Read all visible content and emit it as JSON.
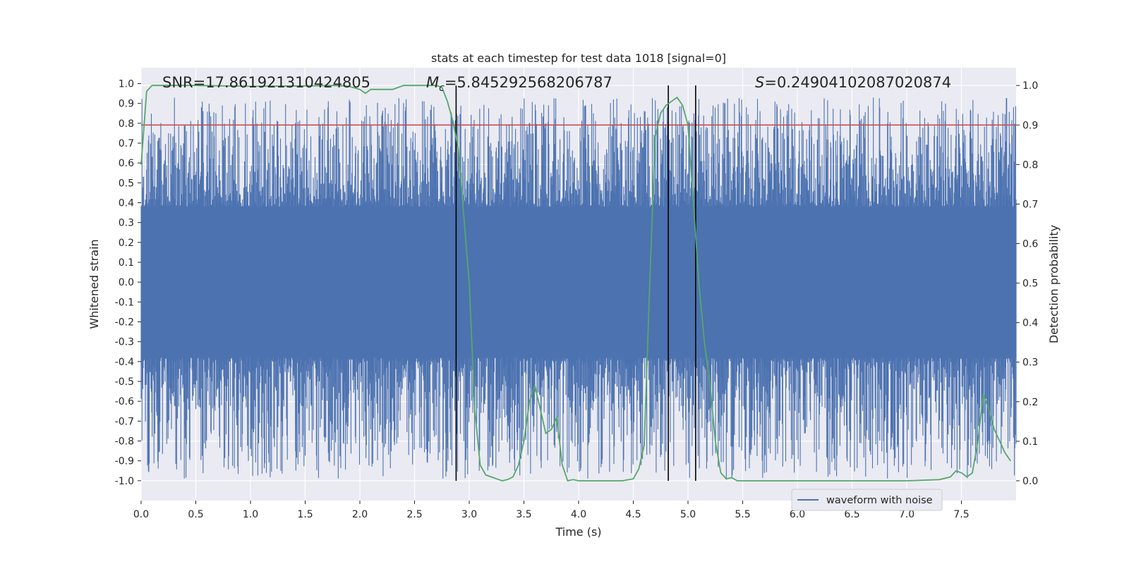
{
  "chart_data": {
    "type": "line",
    "title": "stats at each timestep for test data 1018 [signal=0]",
    "xlabel": "Time (s)",
    "ylabel_left": "Whitened strain",
    "ylabel_right": "Detection probability",
    "xlim": [
      0.0,
      8.0
    ],
    "ylim_left": [
      -1.1,
      1.08
    ],
    "ylim_right": [
      -0.05,
      1.045
    ],
    "grid": true,
    "x_ticks": [
      "0.0",
      "0.5",
      "1.0",
      "1.5",
      "2.0",
      "2.5",
      "3.0",
      "3.5",
      "4.0",
      "4.5",
      "5.0",
      "5.5",
      "6.0",
      "6.5",
      "7.0",
      "7.5"
    ],
    "x_tick_values": [
      0.0,
      0.5,
      1.0,
      1.5,
      2.0,
      2.5,
      3.0,
      3.5,
      4.0,
      4.5,
      5.0,
      5.5,
      6.0,
      6.5,
      7.0,
      7.5
    ],
    "y_ticks_left": [
      "1.0",
      "0.9",
      "0.8",
      "0.7",
      "0.6",
      "0.5",
      "0.4",
      "0.3",
      "0.2",
      "0.1",
      "0.0",
      "-0.1",
      "-0.2",
      "-0.3",
      "-0.4",
      "-0.5",
      "-0.6",
      "-0.7",
      "-0.8",
      "-0.9",
      "-1.0"
    ],
    "y_tick_values_left": [
      1.0,
      0.9,
      0.8,
      0.7,
      0.6,
      0.5,
      0.4,
      0.3,
      0.2,
      0.1,
      0.0,
      -0.1,
      -0.2,
      -0.3,
      -0.4,
      -0.5,
      -0.6,
      -0.7,
      -0.8,
      -0.9,
      -1.0
    ],
    "y_ticks_right": [
      "1.0",
      "0.9",
      "0.8",
      "0.7",
      "0.6",
      "0.5",
      "0.4",
      "0.3",
      "0.2",
      "0.1",
      "0.0"
    ],
    "y_tick_values_right": [
      1.0,
      0.9,
      0.8,
      0.7,
      0.6,
      0.5,
      0.4,
      0.3,
      0.2,
      0.1,
      0.0
    ],
    "annotations": {
      "snr": "SNR=17.861921310424805",
      "mc_symbol": "M",
      "mc_sub": "c",
      "mc_value": "=5.845292568206787",
      "s_symbol": "S",
      "s_value": "=0.24904102087020874"
    },
    "threshold": {
      "axis": "right",
      "value": 0.9,
      "color": "#c44e52"
    },
    "vertical_lines": [
      2.88,
      4.82,
      5.07
    ],
    "series": [
      {
        "name": "waveform with noise",
        "axis": "left",
        "color": "#4c72b0",
        "style": "noise",
        "band": [
          -0.38,
          0.38
        ],
        "spike_max": 0.93,
        "spike_min": -0.99,
        "samples": 2048
      },
      {
        "name": "detection probability",
        "axis": "right",
        "color": "#55a868",
        "x": [
          0.0,
          0.05,
          0.1,
          0.2,
          0.5,
          1.0,
          1.5,
          1.8,
          1.9,
          2.0,
          2.05,
          2.1,
          2.2,
          2.3,
          2.4,
          2.5,
          2.6,
          2.7,
          2.75,
          2.8,
          2.85,
          2.9,
          3.0,
          3.05,
          3.1,
          3.15,
          3.2,
          3.25,
          3.3,
          3.35,
          3.4,
          3.45,
          3.5,
          3.55,
          3.6,
          3.65,
          3.7,
          3.75,
          3.8,
          3.85,
          3.9,
          3.95,
          4.0,
          4.1,
          4.2,
          4.3,
          4.4,
          4.5,
          4.55,
          4.6,
          4.65,
          4.7,
          4.75,
          4.8,
          4.85,
          4.9,
          4.95,
          5.0,
          5.05,
          5.1,
          5.15,
          5.2,
          5.25,
          5.3,
          5.35,
          5.4,
          5.45,
          5.5,
          5.6,
          5.7,
          5.8,
          6.0,
          6.5,
          7.0,
          7.3,
          7.4,
          7.45,
          7.5,
          7.55,
          7.6,
          7.65,
          7.7,
          7.75,
          7.8,
          7.85,
          7.9,
          7.95
        ],
        "y": [
          0.8,
          0.985,
          1.0,
          1.0,
          1.0,
          0.998,
          0.999,
          1.0,
          0.998,
          0.99,
          0.98,
          0.99,
          0.99,
          0.99,
          1.0,
          1.0,
          1.0,
          1.0,
          0.995,
          0.96,
          0.91,
          0.84,
          0.5,
          0.18,
          0.04,
          0.015,
          0.01,
          0.005,
          0.0,
          0.003,
          0.01,
          0.04,
          0.1,
          0.2,
          0.24,
          0.18,
          0.12,
          0.13,
          0.16,
          0.04,
          0.0,
          0.003,
          0.0,
          0.0,
          0.0,
          0.0,
          0.0,
          0.005,
          0.03,
          0.09,
          0.5,
          0.87,
          0.93,
          0.95,
          0.96,
          0.97,
          0.95,
          0.9,
          0.7,
          0.5,
          0.35,
          0.25,
          0.1,
          0.02,
          0.005,
          0.008,
          0.0,
          0.0,
          0.0,
          0.0,
          0.0,
          0.0,
          0.0,
          0.0,
          0.003,
          0.01,
          0.025,
          0.02,
          0.01,
          0.02,
          0.1,
          0.22,
          0.18,
          0.13,
          0.1,
          0.07,
          0.05
        ]
      }
    ],
    "legend": {
      "placement": "bottom-right",
      "entries": [
        "waveform with noise"
      ]
    }
  }
}
